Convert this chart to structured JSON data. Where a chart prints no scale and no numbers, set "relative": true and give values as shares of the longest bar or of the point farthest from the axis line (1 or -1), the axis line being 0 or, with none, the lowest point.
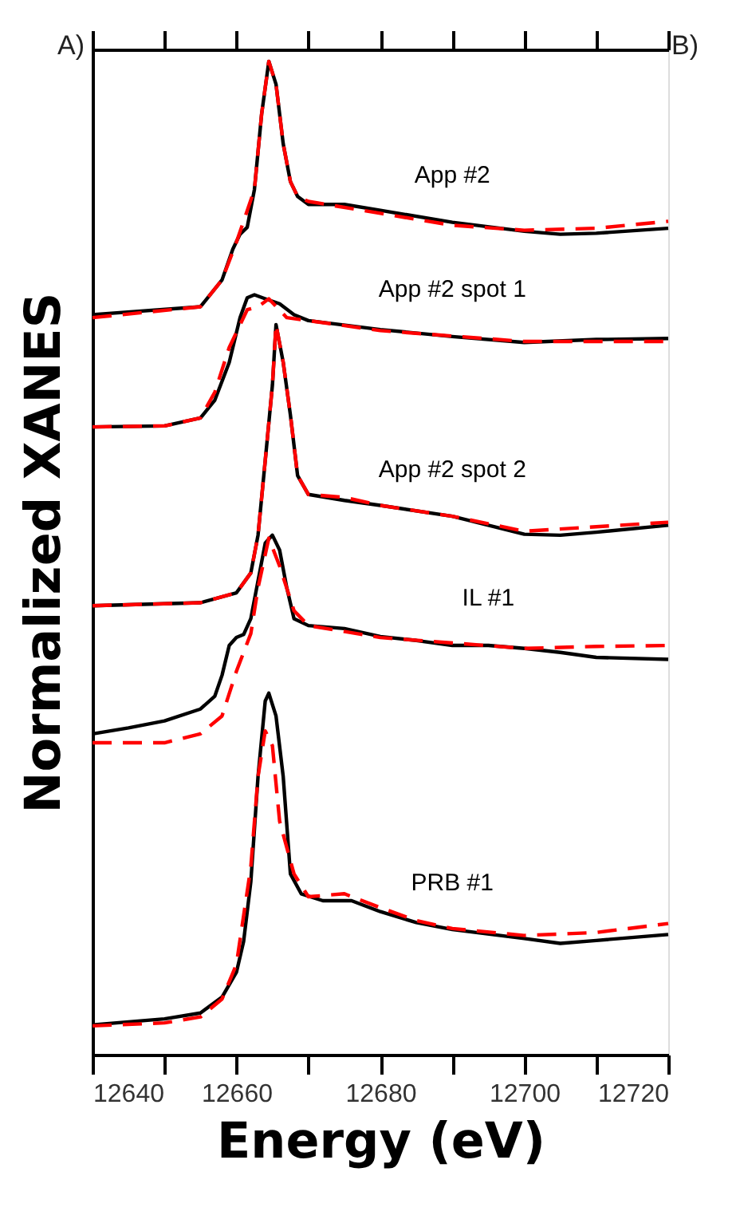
{
  "chart_data": {
    "type": "line",
    "relative": true,
    "xlabel": "Energy (eV)",
    "ylabel": "Normalized XANES",
    "annotations": [
      "A)",
      "B)"
    ],
    "xlim": [
      12640,
      12720
    ],
    "xticks": [
      12640,
      {
        "value": 12650,
        "label": null
      },
      12660,
      {
        "value": 12670,
        "label": null
      },
      12680,
      {
        "value": 12690,
        "label": null
      },
      12700,
      {
        "value": 12710,
        "label": null
      },
      12720
    ],
    "grid": false,
    "marker": "none",
    "series": [
      {
        "name": "App #2",
        "color": "#000000",
        "line_style": "solid",
        "x": [
          12640,
          12655,
          12658,
          12659.5,
          12660.5,
          12661.5,
          12662.5,
          12663.5,
          12664.5,
          12665.5,
          12666.5,
          12667.5,
          12668.5,
          12670,
          12675,
          12680,
          12690,
          12700,
          12705,
          12710,
          12720
        ],
        "values": [
          0.745,
          0.753,
          0.78,
          0.811,
          0.826,
          0.833,
          0.871,
          0.947,
          1.0,
          0.977,
          0.917,
          0.879,
          0.864,
          0.856,
          0.856,
          0.85,
          0.838,
          0.829,
          0.826,
          0.827,
          0.832
        ]
      },
      {
        "color": "#ff0000",
        "line_style": "dashed",
        "x": [
          12640,
          12655,
          12658,
          12660,
          12662.5,
          12663.5,
          12664.5,
          12665.5,
          12666.5,
          12667.5,
          12668.5,
          12670,
          12680,
          12690,
          12700,
          12710,
          12720
        ],
        "values": [
          0.742,
          0.753,
          0.78,
          0.818,
          0.871,
          0.947,
          1.0,
          0.977,
          0.917,
          0.879,
          0.864,
          0.859,
          0.847,
          0.835,
          0.83,
          0.832,
          0.839
        ]
      },
      {
        "name": "App #2 spot 1",
        "color": "#000000",
        "line_style": "solid",
        "x": [
          12640,
          12650,
          12655,
          12657,
          12659,
          12660.5,
          12661.5,
          12662.5,
          12664,
          12666,
          12668,
          12670,
          12680,
          12690,
          12700,
          12710,
          12720
        ],
        "values": [
          0.632,
          0.633,
          0.641,
          0.659,
          0.697,
          0.742,
          0.762,
          0.765,
          0.761,
          0.756,
          0.745,
          0.739,
          0.73,
          0.723,
          0.717,
          0.72,
          0.721
        ]
      },
      {
        "color": "#ff0000",
        "line_style": "dashed",
        "x": [
          12640,
          12650,
          12655,
          12657,
          12659,
          12661.5,
          12663,
          12664.5,
          12667,
          12680,
          12700,
          12720
        ],
        "values": [
          0.632,
          0.633,
          0.641,
          0.667,
          0.712,
          0.75,
          0.753,
          0.761,
          0.742,
          0.729,
          0.718,
          0.718
        ]
      },
      {
        "name": "App #2 spot 2",
        "color": "#000000",
        "line_style": "solid",
        "x": [
          12640,
          12655,
          12660,
          12662,
          12663,
          12664,
          12665,
          12665.5,
          12666.5,
          12667.5,
          12668.5,
          12670,
          12675,
          12680,
          12690,
          12700,
          12705,
          12710,
          12720
        ],
        "values": [
          0.452,
          0.455,
          0.465,
          0.485,
          0.523,
          0.598,
          0.674,
          0.735,
          0.697,
          0.644,
          0.583,
          0.564,
          0.558,
          0.553,
          0.542,
          0.524,
          0.523,
          0.526,
          0.533
        ]
      },
      {
        "color": "#ff0000",
        "line_style": "dashed",
        "x": [
          12640,
          12655,
          12660,
          12662,
          12663,
          12664,
          12665,
          12665.5,
          12666.5,
          12667.5,
          12668.5,
          12670,
          12675,
          12680,
          12690,
          12700,
          12720
        ],
        "values": [
          0.452,
          0.455,
          0.465,
          0.485,
          0.523,
          0.598,
          0.674,
          0.735,
          0.697,
          0.644,
          0.583,
          0.564,
          0.561,
          0.553,
          0.542,
          0.527,
          0.536
        ]
      },
      {
        "name": "IL #1",
        "color": "#000000",
        "line_style": "solid",
        "x": [
          12640,
          12645,
          12650,
          12655,
          12657,
          12658,
          12659,
          12660,
          12661,
          12662,
          12663,
          12664,
          12665,
          12666,
          12667,
          12668,
          12670,
          12675,
          12680,
          12685,
          12690,
          12695,
          12700,
          12705,
          12710,
          12720
        ],
        "values": [
          0.323,
          0.329,
          0.336,
          0.348,
          0.361,
          0.382,
          0.412,
          0.42,
          0.423,
          0.439,
          0.477,
          0.515,
          0.523,
          0.508,
          0.47,
          0.439,
          0.432,
          0.429,
          0.421,
          0.417,
          0.412,
          0.412,
          0.409,
          0.405,
          0.4,
          0.398
        ]
      },
      {
        "color": "#ff0000",
        "line_style": "dashed",
        "x": [
          12640,
          12650,
          12655,
          12658,
          12660,
          12662,
          12663,
          12664.5,
          12666,
          12668,
          12670,
          12680,
          12700,
          12710,
          12720
        ],
        "values": [
          0.314,
          0.314,
          0.323,
          0.341,
          0.386,
          0.424,
          0.47,
          0.52,
          0.492,
          0.447,
          0.432,
          0.42,
          0.409,
          0.411,
          0.412
        ]
      },
      {
        "name": "PRB #1",
        "color": "#000000",
        "line_style": "solid",
        "x": [
          12640,
          12650,
          12655,
          12658,
          12660,
          12661,
          12662,
          12663,
          12664,
          12664.5,
          12665.5,
          12666.5,
          12667.5,
          12669,
          12672,
          12676,
          12680,
          12685,
          12690,
          12700,
          12705,
          12710,
          12720
        ],
        "values": [
          0.03,
          0.036,
          0.042,
          0.058,
          0.083,
          0.114,
          0.174,
          0.28,
          0.356,
          0.364,
          0.341,
          0.28,
          0.182,
          0.162,
          0.155,
          0.155,
          0.144,
          0.133,
          0.126,
          0.117,
          0.112,
          0.115,
          0.121
        ]
      },
      {
        "color": "#ff0000",
        "line_style": "dashed",
        "x": [
          12640,
          12650,
          12655,
          12658,
          12660,
          12662,
          12663,
          12664,
          12665,
          12666,
          12668,
          12670,
          12675,
          12680,
          12685,
          12690,
          12700,
          12710,
          12720
        ],
        "values": [
          0.029,
          0.032,
          0.038,
          0.056,
          0.091,
          0.189,
          0.28,
          0.326,
          0.311,
          0.235,
          0.182,
          0.159,
          0.162,
          0.148,
          0.135,
          0.127,
          0.12,
          0.123,
          0.132
        ]
      }
    ]
  }
}
